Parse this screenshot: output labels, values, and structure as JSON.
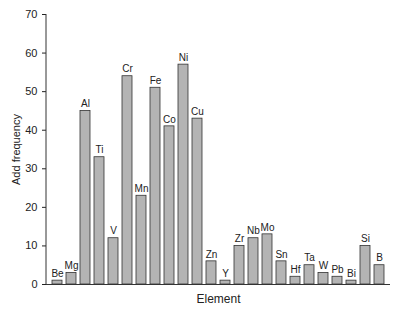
{
  "chart_data": {
    "type": "bar",
    "xlabel": "Element",
    "ylabel": "Add frequency",
    "categories": [
      "Be",
      "Mg",
      "Al",
      "Ti",
      "V",
      "Cr",
      "Mn",
      "Fe",
      "Co",
      "Ni",
      "Cu",
      "Zn",
      "Y",
      "Zr",
      "Nb",
      "Mo",
      "Sn",
      "Hf",
      "Ta",
      "W",
      "Pb",
      "Bi",
      "Si",
      "B"
    ],
    "values": [
      1,
      3,
      45,
      33,
      12,
      54,
      23,
      51,
      41,
      57,
      43,
      6,
      1,
      10,
      12,
      13,
      6,
      2,
      5,
      3,
      2,
      1,
      10,
      5
    ],
    "color": "#b4b4b4",
    "ylim": [
      0,
      70
    ],
    "yticks": [
      0,
      10,
      20,
      30,
      40,
      50,
      60,
      70
    ],
    "grid": false,
    "tick_labels": "y"
  }
}
